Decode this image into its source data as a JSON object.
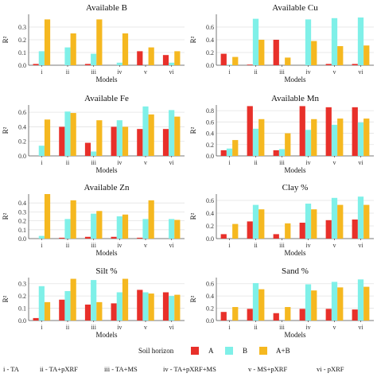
{
  "chart_data": [
    {
      "type": "bar",
      "title": "Available B",
      "xlabel": "Models",
      "ylabel": "R²",
      "categories": [
        "i",
        "ii",
        "iii",
        "iv",
        "v",
        "vi"
      ],
      "ylim": [
        0,
        0.4
      ],
      "yticks": [
        0.0,
        0.1,
        0.2,
        0.3
      ],
      "series": [
        {
          "name": "A",
          "values": [
            0.01,
            0.0,
            0.01,
            0.0,
            0.11,
            0.08
          ]
        },
        {
          "name": "B",
          "values": [
            0.11,
            0.14,
            0.09,
            0.02,
            0.0,
            0.02
          ]
        },
        {
          "name": "A+B",
          "values": [
            0.36,
            0.25,
            0.36,
            0.25,
            0.14,
            0.11
          ]
        }
      ]
    },
    {
      "type": "bar",
      "title": "Available Cu",
      "xlabel": "Models",
      "ylabel": "R²",
      "categories": [
        "i",
        "ii",
        "iii",
        "iv",
        "v",
        "vi"
      ],
      "ylim": [
        0,
        0.8
      ],
      "yticks": [
        0.0,
        0.2,
        0.4,
        0.6
      ],
      "series": [
        {
          "name": "A",
          "values": [
            0.18,
            0.01,
            0.4,
            0.0,
            0.02,
            0.02
          ]
        },
        {
          "name": "B",
          "values": [
            0.01,
            0.73,
            0.0,
            0.72,
            0.74,
            0.75
          ]
        },
        {
          "name": "A+B",
          "values": [
            0.13,
            0.4,
            0.12,
            0.38,
            0.3,
            0.31
          ]
        }
      ]
    },
    {
      "type": "bar",
      "title": "Available Fe",
      "xlabel": "Models",
      "ylabel": "R²",
      "categories": [
        "i",
        "ii",
        "iii",
        "iv",
        "v",
        "vi"
      ],
      "ylim": [
        0,
        0.7
      ],
      "yticks": [
        0.0,
        0.2,
        0.4,
        0.6
      ],
      "series": [
        {
          "name": "A",
          "values": [
            0.0,
            0.4,
            0.18,
            0.4,
            0.37,
            0.37
          ]
        },
        {
          "name": "B",
          "values": [
            0.14,
            0.61,
            0.06,
            0.49,
            0.68,
            0.63
          ]
        },
        {
          "name": "A+B",
          "values": [
            0.5,
            0.59,
            0.49,
            0.4,
            0.57,
            0.54
          ]
        }
      ]
    },
    {
      "type": "bar",
      "title": "Available Mn",
      "xlabel": "Models",
      "ylabel": "R²",
      "categories": [
        "i",
        "ii",
        "iii",
        "iv",
        "v",
        "vi"
      ],
      "ylim": [
        0,
        0.9
      ],
      "yticks": [
        0.0,
        0.2,
        0.4,
        0.6,
        0.8
      ],
      "series": [
        {
          "name": "A",
          "values": [
            0.1,
            0.88,
            0.1,
            0.88,
            0.86,
            0.86
          ]
        },
        {
          "name": "B",
          "values": [
            0.13,
            0.48,
            0.12,
            0.46,
            0.55,
            0.59
          ]
        },
        {
          "name": "A+B",
          "values": [
            0.28,
            0.65,
            0.4,
            0.65,
            0.66,
            0.66
          ]
        }
      ]
    },
    {
      "type": "bar",
      "title": "Available Zn",
      "xlabel": "Models",
      "ylabel": "R²",
      "categories": [
        "i",
        "ii",
        "iii",
        "iv",
        "v",
        "vi"
      ],
      "ylim": [
        0,
        0.5
      ],
      "yticks": [
        0.0,
        0.1,
        0.2,
        0.3,
        0.4
      ],
      "series": [
        {
          "name": "A",
          "values": [
            0.0,
            0.01,
            0.02,
            0.02,
            0.01,
            0.0
          ]
        },
        {
          "name": "B",
          "values": [
            0.03,
            0.22,
            0.28,
            0.25,
            0.22,
            0.22
          ]
        },
        {
          "name": "A+B",
          "values": [
            0.5,
            0.43,
            0.31,
            0.27,
            0.43,
            0.21
          ]
        }
      ]
    },
    {
      "type": "bar",
      "title": "Clay %",
      "xlabel": "Models",
      "ylabel": "R²",
      "categories": [
        "i",
        "ii",
        "iii",
        "iv",
        "v",
        "vi"
      ],
      "ylim": [
        0,
        0.7
      ],
      "yticks": [
        0.0,
        0.2,
        0.4,
        0.6
      ],
      "series": [
        {
          "name": "A",
          "values": [
            0.07,
            0.27,
            0.07,
            0.25,
            0.29,
            0.3
          ]
        },
        {
          "name": "B",
          "values": [
            0.0,
            0.53,
            0.0,
            0.55,
            0.64,
            0.66
          ]
        },
        {
          "name": "A+B",
          "values": [
            0.23,
            0.46,
            0.24,
            0.46,
            0.53,
            0.53
          ]
        }
      ]
    },
    {
      "type": "bar",
      "title": "Silt %",
      "xlabel": "Models",
      "ylabel": "R²",
      "categories": [
        "i",
        "ii",
        "iii",
        "iv",
        "v",
        "vi"
      ],
      "ylim": [
        0,
        0.35
      ],
      "yticks": [
        0.0,
        0.1,
        0.2,
        0.3
      ],
      "series": [
        {
          "name": "A",
          "values": [
            0.02,
            0.17,
            0.13,
            0.14,
            0.25,
            0.23
          ]
        },
        {
          "name": "B",
          "values": [
            0.28,
            0.24,
            0.33,
            0.23,
            0.23,
            0.2
          ]
        },
        {
          "name": "A+B",
          "values": [
            0.15,
            0.34,
            0.15,
            0.34,
            0.22,
            0.21
          ]
        }
      ]
    },
    {
      "type": "bar",
      "title": "Sand %",
      "xlabel": "Models",
      "ylabel": "R²",
      "categories": [
        "i",
        "ii",
        "iii",
        "iv",
        "v",
        "vi"
      ],
      "ylim": [
        0,
        0.7
      ],
      "yticks": [
        0.0,
        0.2,
        0.4,
        0.6
      ],
      "series": [
        {
          "name": "A",
          "values": [
            0.14,
            0.19,
            0.12,
            0.19,
            0.19,
            0.18
          ]
        },
        {
          "name": "B",
          "values": [
            0.0,
            0.61,
            0.0,
            0.59,
            0.63,
            0.67
          ]
        },
        {
          "name": "A+B",
          "values": [
            0.22,
            0.51,
            0.22,
            0.49,
            0.54,
            0.55
          ]
        }
      ]
    }
  ],
  "legend": {
    "title": "Soil horizon",
    "items": [
      {
        "label": "A",
        "color": "#e8302a"
      },
      {
        "label": "B",
        "color": "#7ff0e8"
      },
      {
        "label": "A+B",
        "color": "#f5b820"
      }
    ]
  },
  "model_key": [
    "i - TA",
    "ii - TA+pXRF",
    "iii - TA+MS",
    "iv - TA+pXRF+MS",
    "v - MS+pXRF",
    "vi - pXRF"
  ],
  "colors": {
    "A": "#e8302a",
    "B": "#7ff0e8",
    "A+B": "#f5b820",
    "grid": "#e3e3e3",
    "axis": "#555555"
  }
}
